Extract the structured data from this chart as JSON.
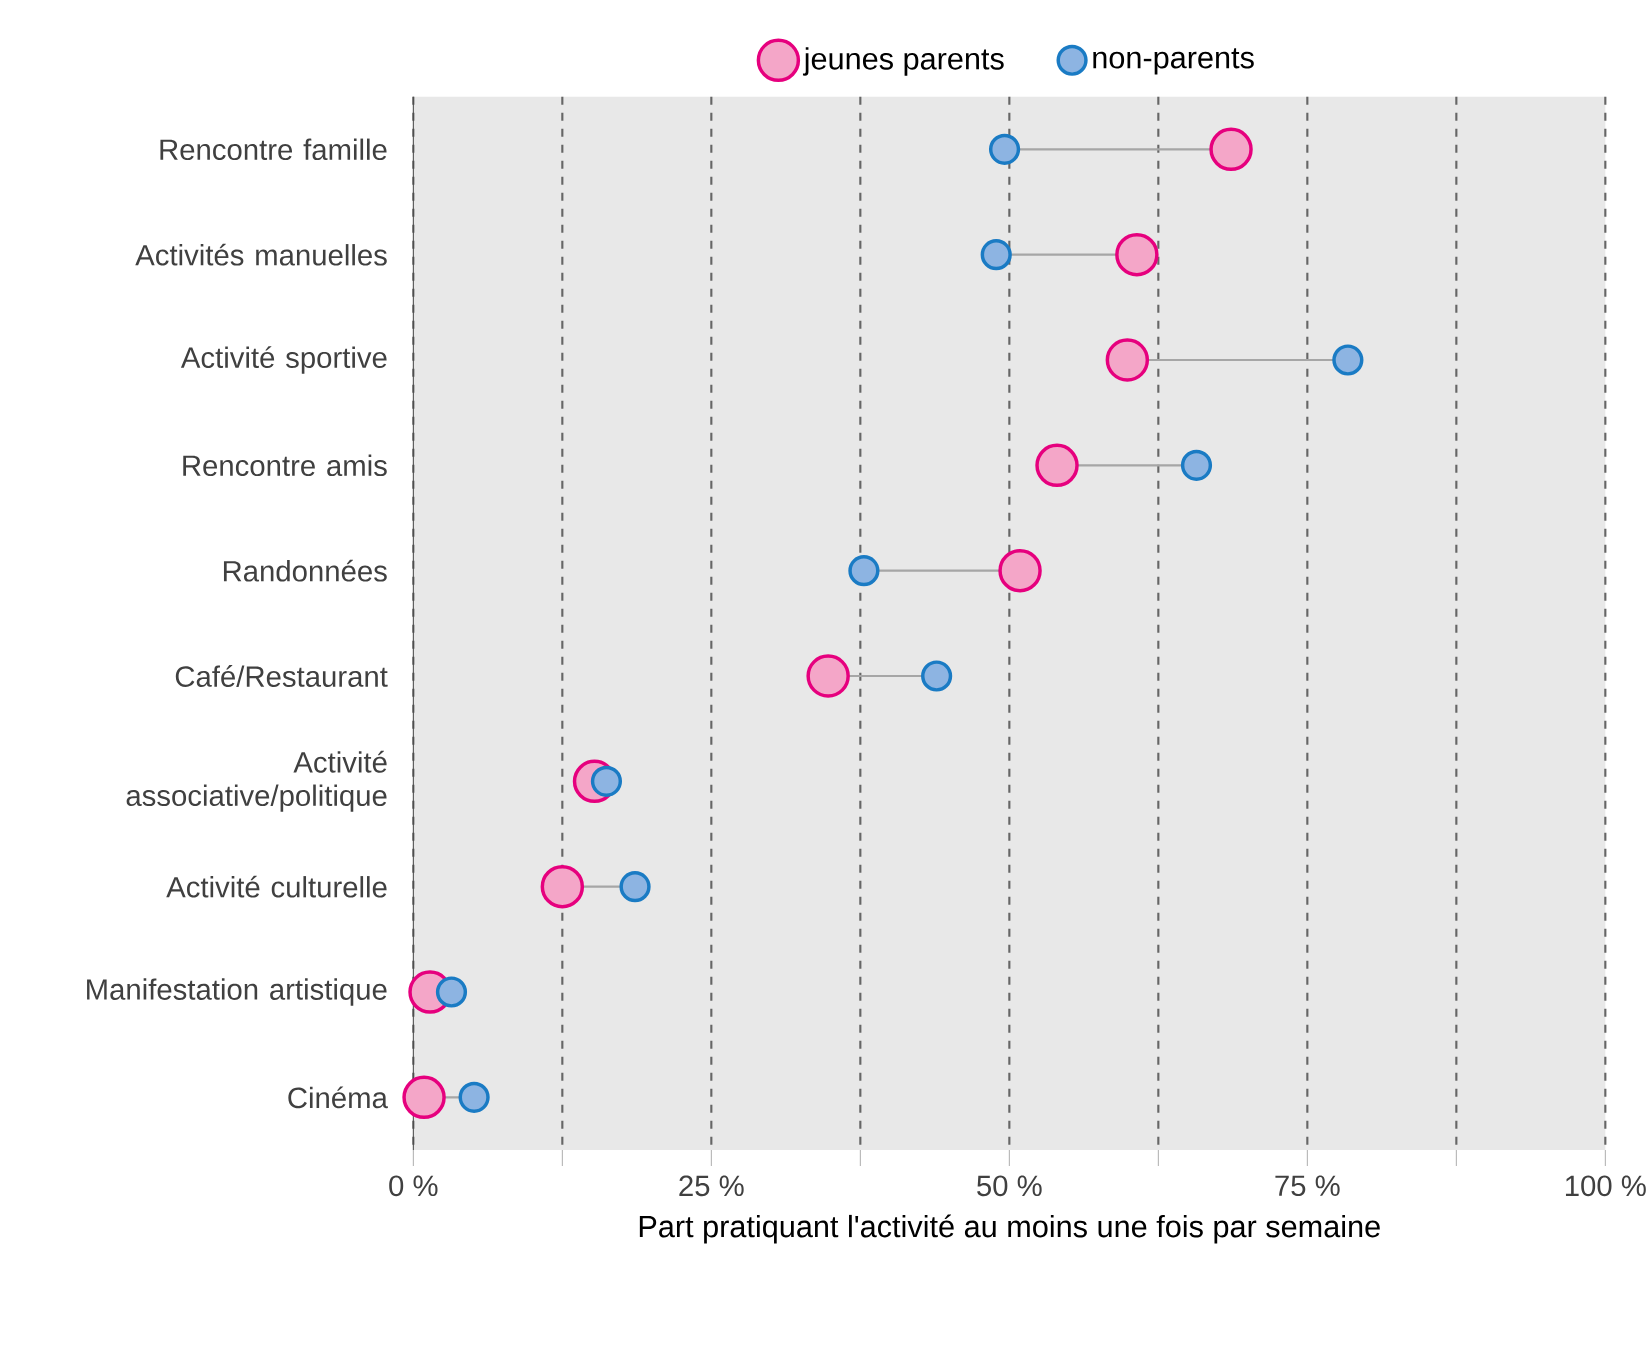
{
  "chart_data": {
    "type": "scatter",
    "orientation": "horizontal",
    "xlabel": "Part pratiquant l'activité au moins une fois par semaine",
    "categories": [
      "Rencontre famille",
      "Activités manuelles",
      "Activité sportive",
      "Rencontre amis",
      "Randonnées",
      "Café/Restaurant",
      "Activité associative/politique",
      "Activité culturelle",
      "Manifestation artistique",
      "Cinéma"
    ],
    "series": [
      {
        "name": "jeunes parents",
        "color": "#f4a6c8",
        "values": [
          68.6,
          60.7,
          59.9,
          54.0,
          50.9,
          34.8,
          15.2,
          12.5,
          1.4,
          0.9
        ]
      },
      {
        "name": "non-parents",
        "color": "#8db4e2",
        "values": [
          49.6,
          48.9,
          78.4,
          65.7,
          37.8,
          43.9,
          16.2,
          18.6,
          3.2,
          5.1
        ]
      }
    ],
    "xlim": [
      0,
      100
    ],
    "xticks": [
      {
        "value": 0,
        "label": "0 %"
      },
      {
        "value": 12.5,
        "label": null
      },
      {
        "value": 25,
        "label": "25 %"
      },
      {
        "value": 37.5,
        "label": null
      },
      {
        "value": 50,
        "label": "50 %"
      },
      {
        "value": 62.5,
        "label": null
      },
      {
        "value": 75,
        "label": "75 %"
      },
      {
        "value": 87.5,
        "label": null
      },
      {
        "value": 100,
        "label": "100 %"
      }
    ],
    "grid": "x",
    "legend": "top",
    "marker": "circle"
  }
}
